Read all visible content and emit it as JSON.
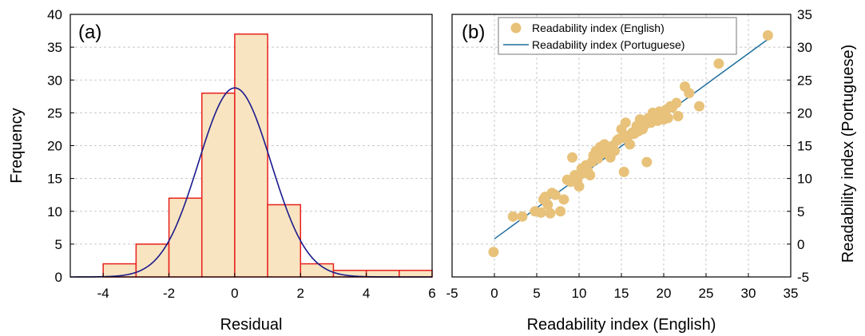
{
  "chart_data": [
    {
      "panel_label": "(a)",
      "type": "bar",
      "xlabel": "Residual",
      "ylabel": "Frequency",
      "xlim": [
        -5,
        6
      ],
      "ylim": [
        0,
        40
      ],
      "xticks": [
        -4,
        -2,
        0,
        2,
        4,
        6
      ],
      "yticks": [
        0,
        5,
        10,
        15,
        20,
        25,
        30,
        35,
        40
      ],
      "bins": [
        {
          "x0": -4,
          "x1": -3,
          "count": 2
        },
        {
          "x0": -3,
          "x1": -2,
          "count": 5
        },
        {
          "x0": -2,
          "x1": -1,
          "count": 12
        },
        {
          "x0": -1,
          "x1": 0,
          "count": 28
        },
        {
          "x0": 0,
          "x1": 1,
          "count": 37
        },
        {
          "x0": 1,
          "x1": 2,
          "count": 11
        },
        {
          "x0": 2,
          "x1": 3,
          "count": 2
        },
        {
          "x0": 3,
          "x1": 4,
          "count": 1
        },
        {
          "x0": 4,
          "x1": 5,
          "count": 1
        },
        {
          "x0": 5,
          "x1": 6,
          "count": 1
        }
      ],
      "fit_curve": {
        "type": "normal",
        "mean": 0,
        "sd": 1.1,
        "peak": 28.8
      },
      "grid": true,
      "colors": {
        "bar_fill": "#f8e4c0",
        "bar_edge": "#e8201e",
        "curve": "#1a1a8c"
      }
    },
    {
      "panel_label": "(b)",
      "type": "scatter",
      "xlabel": "Readability index (English)",
      "ylabel": "Readability index (Portuguese)",
      "xlim": [
        -5,
        35
      ],
      "ylim": [
        -5,
        35
      ],
      "xticks": [
        -5,
        0,
        5,
        10,
        15,
        20,
        25,
        30,
        35
      ],
      "yticks": [
        -5,
        0,
        5,
        10,
        15,
        20,
        25,
        30,
        35
      ],
      "grid": true,
      "legend": {
        "position": "top-left",
        "entries": [
          "Readability index (English)",
          "Readability index (Portuguese)"
        ]
      },
      "points": [
        [
          -0.1,
          -1.2
        ],
        [
          2.2,
          4.2
        ],
        [
          3.3,
          4.2
        ],
        [
          4.8,
          5.0
        ],
        [
          5.5,
          4.8
        ],
        [
          5.8,
          6.8
        ],
        [
          6.0,
          7.2
        ],
        [
          6.3,
          6.0
        ],
        [
          6.6,
          4.7
        ],
        [
          6.8,
          7.8
        ],
        [
          7.2,
          7.5
        ],
        [
          7.8,
          5.0
        ],
        [
          8.2,
          6.8
        ],
        [
          8.6,
          9.8
        ],
        [
          9.0,
          9.5
        ],
        [
          9.2,
          13.2
        ],
        [
          9.5,
          10.5
        ],
        [
          9.8,
          9.8
        ],
        [
          10.0,
          8.8
        ],
        [
          10.3,
          11.5
        ],
        [
          10.5,
          10.8
        ],
        [
          10.8,
          12.0
        ],
        [
          11.0,
          11.2
        ],
        [
          11.3,
          10.5
        ],
        [
          11.5,
          12.5
        ],
        [
          11.7,
          13.5
        ],
        [
          12.0,
          14.2
        ],
        [
          12.2,
          13.0
        ],
        [
          12.5,
          14.8
        ],
        [
          12.7,
          13.8
        ],
        [
          13.0,
          15.2
        ],
        [
          13.2,
          14.5
        ],
        [
          13.5,
          14.0
        ],
        [
          13.7,
          13.2
        ],
        [
          14.0,
          15.0
        ],
        [
          14.2,
          14.2
        ],
        [
          14.5,
          15.8
        ],
        [
          14.7,
          16.0
        ],
        [
          15.0,
          17.5
        ],
        [
          15.2,
          16.2
        ],
        [
          15.3,
          11.0
        ],
        [
          15.5,
          18.5
        ],
        [
          15.8,
          16.5
        ],
        [
          16.0,
          15.2
        ],
        [
          16.3,
          17.0
        ],
        [
          16.5,
          16.8
        ],
        [
          16.8,
          18.0
        ],
        [
          17.0,
          17.2
        ],
        [
          17.2,
          19.0
        ],
        [
          17.5,
          17.5
        ],
        [
          17.8,
          18.2
        ],
        [
          18.0,
          12.5
        ],
        [
          18.2,
          19.2
        ],
        [
          18.5,
          18.5
        ],
        [
          18.7,
          20.0
        ],
        [
          19.0,
          19.5
        ],
        [
          19.3,
          18.8
        ],
        [
          19.5,
          20.2
        ],
        [
          19.8,
          19.8
        ],
        [
          20.0,
          19.0
        ],
        [
          20.3,
          20.5
        ],
        [
          20.5,
          19.2
        ],
        [
          20.8,
          21.0
        ],
        [
          21.0,
          20.8
        ],
        [
          21.5,
          21.5
        ],
        [
          21.7,
          19.5
        ],
        [
          22.5,
          24.0
        ],
        [
          23.0,
          23.0
        ],
        [
          24.2,
          21.0
        ],
        [
          26.5,
          27.5
        ],
        [
          32.3,
          31.8
        ]
      ],
      "fit_line": {
        "x": [
          0,
          32.3
        ],
        "y": [
          0.8,
          31.2
        ]
      },
      "colors": {
        "points": "#e8c27a",
        "line": "#1f6e9e"
      }
    }
  ]
}
